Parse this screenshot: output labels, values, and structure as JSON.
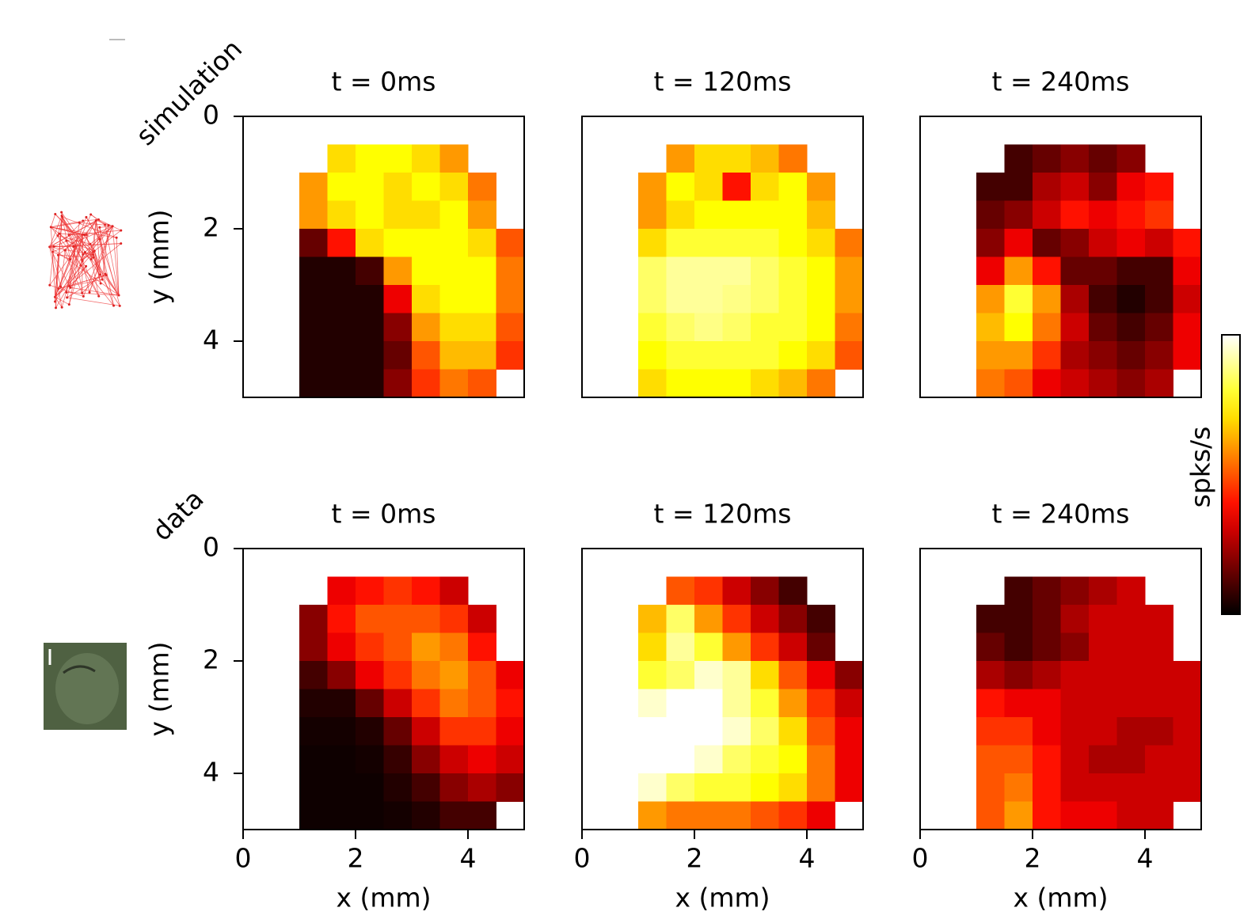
{
  "row_labels": [
    "simulation",
    "data"
  ],
  "colorbar": {
    "label": "spks/s",
    "zlim": [
      0,
      1
    ],
    "colormap": "hot"
  },
  "chart_data": [
    {
      "type": "heatmap",
      "title": "t = 0ms",
      "ylabel": "y (mm)",
      "xlim": [
        0,
        5
      ],
      "ylim": [
        5,
        0
      ],
      "yticks": [
        0,
        2,
        4
      ],
      "x": [
        0.25,
        0.75,
        1.25,
        1.75,
        2.25,
        2.75,
        3.25,
        3.75,
        4.25,
        4.75
      ],
      "y": [
        0.25,
        0.75,
        1.25,
        1.75,
        2.25,
        2.75,
        3.25,
        3.75,
        4.25,
        4.75
      ],
      "values": [
        [
          null,
          null,
          null,
          null,
          null,
          null,
          null,
          null,
          null,
          null
        ],
        [
          null,
          null,
          null,
          0.7,
          0.75,
          0.75,
          0.7,
          0.6,
          null,
          null
        ],
        [
          null,
          null,
          0.6,
          0.75,
          0.75,
          0.7,
          0.75,
          0.7,
          0.55,
          null
        ],
        [
          null,
          null,
          0.6,
          0.7,
          0.75,
          0.7,
          0.7,
          0.75,
          0.6,
          null
        ],
        [
          null,
          null,
          0.15,
          0.4,
          0.7,
          0.75,
          0.75,
          0.75,
          0.7,
          0.5
        ],
        [
          null,
          null,
          0.05,
          0.05,
          0.1,
          0.6,
          0.75,
          0.75,
          0.75,
          0.55
        ],
        [
          null,
          null,
          0.05,
          0.05,
          0.05,
          0.35,
          0.7,
          0.75,
          0.75,
          0.55
        ],
        [
          null,
          null,
          0.05,
          0.05,
          0.05,
          0.2,
          0.6,
          0.7,
          0.7,
          0.5
        ],
        [
          null,
          null,
          0.05,
          0.05,
          0.05,
          0.15,
          0.5,
          0.65,
          0.65,
          0.45
        ],
        [
          null,
          null,
          0.05,
          0.05,
          0.05,
          0.2,
          0.45,
          0.55,
          0.5,
          null
        ]
      ]
    },
    {
      "type": "heatmap",
      "title": "t = 120ms",
      "xlim": [
        0,
        5
      ],
      "ylim": [
        5,
        0
      ],
      "x": [
        0.25,
        0.75,
        1.25,
        1.75,
        2.25,
        2.75,
        3.25,
        3.75,
        4.25,
        4.75
      ],
      "y": [
        0.25,
        0.75,
        1.25,
        1.75,
        2.25,
        2.75,
        3.25,
        3.75,
        4.25,
        4.75
      ],
      "values": [
        [
          null,
          null,
          null,
          null,
          null,
          null,
          null,
          null,
          null,
          null
        ],
        [
          null,
          null,
          null,
          0.6,
          0.7,
          0.7,
          0.65,
          0.55,
          null,
          null
        ],
        [
          null,
          null,
          0.6,
          0.75,
          0.7,
          0.4,
          0.7,
          0.75,
          0.6,
          null
        ],
        [
          null,
          null,
          0.6,
          0.7,
          0.75,
          0.75,
          0.75,
          0.75,
          0.65,
          null
        ],
        [
          null,
          null,
          0.7,
          0.8,
          0.8,
          0.8,
          0.8,
          0.75,
          0.7,
          0.55
        ],
        [
          null,
          null,
          0.85,
          0.9,
          0.9,
          0.9,
          0.85,
          0.8,
          0.75,
          0.6
        ],
        [
          null,
          null,
          0.85,
          0.9,
          0.9,
          0.88,
          0.85,
          0.8,
          0.75,
          0.6
        ],
        [
          null,
          null,
          0.8,
          0.85,
          0.88,
          0.85,
          0.8,
          0.8,
          0.75,
          0.55
        ],
        [
          null,
          null,
          0.75,
          0.8,
          0.8,
          0.8,
          0.8,
          0.75,
          0.7,
          0.5
        ],
        [
          null,
          null,
          0.7,
          0.75,
          0.75,
          0.75,
          0.7,
          0.65,
          0.55,
          null
        ]
      ]
    },
    {
      "type": "heatmap",
      "title": "t = 240ms",
      "xlim": [
        0,
        5
      ],
      "ylim": [
        5,
        0
      ],
      "x": [
        0.25,
        0.75,
        1.25,
        1.75,
        2.25,
        2.75,
        3.25,
        3.75,
        4.25,
        4.75
      ],
      "y": [
        0.25,
        0.75,
        1.25,
        1.75,
        2.25,
        2.75,
        3.25,
        3.75,
        4.25,
        4.75
      ],
      "values": [
        [
          null,
          null,
          null,
          null,
          null,
          null,
          null,
          null,
          null,
          null
        ],
        [
          null,
          null,
          null,
          0.1,
          0.15,
          0.2,
          0.15,
          0.2,
          null,
          null
        ],
        [
          null,
          null,
          0.1,
          0.1,
          0.25,
          0.3,
          0.2,
          0.35,
          0.4,
          null
        ],
        [
          null,
          null,
          0.15,
          0.2,
          0.3,
          0.4,
          0.35,
          0.4,
          0.45,
          null
        ],
        [
          null,
          null,
          0.2,
          0.35,
          0.15,
          0.2,
          0.3,
          0.35,
          0.3,
          0.4
        ],
        [
          null,
          null,
          0.35,
          0.6,
          0.4,
          0.15,
          0.15,
          0.1,
          0.1,
          0.35
        ],
        [
          null,
          null,
          0.6,
          0.8,
          0.6,
          0.25,
          0.1,
          0.05,
          0.1,
          0.3
        ],
        [
          null,
          null,
          0.65,
          0.75,
          0.55,
          0.3,
          0.15,
          0.1,
          0.15,
          0.35
        ],
        [
          null,
          null,
          0.6,
          0.6,
          0.45,
          0.25,
          0.2,
          0.15,
          0.2,
          0.35
        ],
        [
          null,
          null,
          0.55,
          0.5,
          0.35,
          0.3,
          0.25,
          0.2,
          0.25,
          null
        ]
      ]
    },
    {
      "type": "heatmap",
      "title": "t = 0ms",
      "ylabel": "y (mm)",
      "xlabel": "x (mm)",
      "xlim": [
        0,
        5
      ],
      "ylim": [
        5,
        0
      ],
      "xticks": [
        0,
        2,
        4
      ],
      "yticks": [
        0,
        2,
        4
      ],
      "x": [
        0.25,
        0.75,
        1.25,
        1.75,
        2.25,
        2.75,
        3.25,
        3.75,
        4.25,
        4.75
      ],
      "y": [
        0.25,
        0.75,
        1.25,
        1.75,
        2.25,
        2.75,
        3.25,
        3.75,
        4.25,
        4.75
      ],
      "values": [
        [
          null,
          null,
          null,
          null,
          null,
          null,
          null,
          null,
          null,
          null
        ],
        [
          null,
          null,
          null,
          0.35,
          0.4,
          0.45,
          0.4,
          0.3,
          null,
          null
        ],
        [
          null,
          null,
          0.2,
          0.4,
          0.5,
          0.5,
          0.5,
          0.45,
          0.3,
          null
        ],
        [
          null,
          null,
          0.2,
          0.35,
          0.45,
          0.5,
          0.6,
          0.55,
          0.4,
          null
        ],
        [
          null,
          null,
          0.1,
          0.2,
          0.35,
          0.45,
          0.55,
          0.6,
          0.5,
          0.35
        ],
        [
          null,
          null,
          0.05,
          0.05,
          0.15,
          0.3,
          0.45,
          0.55,
          0.5,
          0.4
        ],
        [
          null,
          null,
          0.03,
          0.03,
          0.05,
          0.15,
          0.3,
          0.45,
          0.45,
          0.35
        ],
        [
          null,
          null,
          0.02,
          0.02,
          0.03,
          0.08,
          0.2,
          0.3,
          0.35,
          0.3
        ],
        [
          null,
          null,
          0.02,
          0.02,
          0.02,
          0.05,
          0.1,
          0.2,
          0.25,
          0.2
        ],
        [
          null,
          null,
          0.02,
          0.02,
          0.02,
          0.03,
          0.05,
          0.1,
          0.1,
          null
        ]
      ]
    },
    {
      "type": "heatmap",
      "title": "t = 120ms",
      "xlabel": "x (mm)",
      "xlim": [
        0,
        5
      ],
      "ylim": [
        5,
        0
      ],
      "xticks": [
        0,
        2,
        4
      ],
      "x": [
        0.25,
        0.75,
        1.25,
        1.75,
        2.25,
        2.75,
        3.25,
        3.75,
        4.25,
        4.75
      ],
      "y": [
        0.25,
        0.75,
        1.25,
        1.75,
        2.25,
        2.75,
        3.25,
        3.75,
        4.25,
        4.75
      ],
      "values": [
        [
          null,
          null,
          null,
          null,
          null,
          null,
          null,
          null,
          null,
          null
        ],
        [
          null,
          null,
          null,
          0.5,
          0.45,
          0.3,
          0.2,
          0.1,
          null,
          null
        ],
        [
          null,
          null,
          0.65,
          0.85,
          0.6,
          0.45,
          0.3,
          0.2,
          0.1,
          null
        ],
        [
          null,
          null,
          0.7,
          0.9,
          0.8,
          0.6,
          0.45,
          0.3,
          0.15,
          null
        ],
        [
          null,
          null,
          0.8,
          0.85,
          0.95,
          0.9,
          0.7,
          0.5,
          0.35,
          0.2
        ],
        [
          null,
          null,
          0.95,
          1,
          1,
          0.9,
          0.8,
          0.6,
          0.45,
          0.3
        ],
        [
          null,
          null,
          1,
          1,
          1,
          0.95,
          0.85,
          0.7,
          0.5,
          0.35
        ],
        [
          null,
          null,
          1,
          1,
          0.95,
          0.85,
          0.8,
          0.75,
          0.55,
          0.35
        ],
        [
          null,
          null,
          0.95,
          0.85,
          0.8,
          0.8,
          0.75,
          0.7,
          0.55,
          0.35
        ],
        [
          null,
          null,
          0.6,
          0.55,
          0.55,
          0.55,
          0.5,
          0.45,
          0.35,
          null
        ]
      ]
    },
    {
      "type": "heatmap",
      "title": "t = 240ms",
      "xlabel": "x (mm)",
      "xlim": [
        0,
        5
      ],
      "ylim": [
        5,
        0
      ],
      "xticks": [
        0,
        2,
        4
      ],
      "x": [
        0.25,
        0.75,
        1.25,
        1.75,
        2.25,
        2.75,
        3.25,
        3.75,
        4.25,
        4.75
      ],
      "y": [
        0.25,
        0.75,
        1.25,
        1.75,
        2.25,
        2.75,
        3.25,
        3.75,
        4.25,
        4.75
      ],
      "values": [
        [
          null,
          null,
          null,
          null,
          null,
          null,
          null,
          null,
          null,
          null
        ],
        [
          null,
          null,
          null,
          0.1,
          0.15,
          0.2,
          0.25,
          0.3,
          null,
          null
        ],
        [
          null,
          null,
          0.1,
          0.1,
          0.15,
          0.25,
          0.3,
          0.3,
          0.3,
          null
        ],
        [
          null,
          null,
          0.15,
          0.1,
          0.15,
          0.2,
          0.3,
          0.3,
          0.3,
          null
        ],
        [
          null,
          null,
          0.25,
          0.2,
          0.25,
          0.3,
          0.3,
          0.3,
          0.3,
          0.3
        ],
        [
          null,
          null,
          0.4,
          0.35,
          0.35,
          0.3,
          0.3,
          0.3,
          0.3,
          0.3
        ],
        [
          null,
          null,
          0.45,
          0.45,
          0.35,
          0.3,
          0.3,
          0.25,
          0.25,
          0.3
        ],
        [
          null,
          null,
          0.5,
          0.5,
          0.4,
          0.3,
          0.25,
          0.25,
          0.3,
          0.3
        ],
        [
          null,
          null,
          0.5,
          0.55,
          0.4,
          0.3,
          0.3,
          0.3,
          0.3,
          0.3
        ],
        [
          null,
          null,
          0.5,
          0.6,
          0.4,
          0.35,
          0.35,
          0.3,
          0.3,
          null
        ]
      ]
    }
  ]
}
